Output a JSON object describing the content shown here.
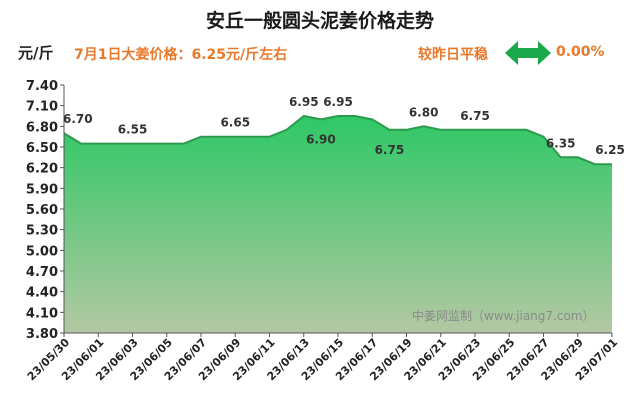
{
  "header": {
    "title": "安丘一般圆头泥姜价格走势",
    "unit": "元/斤",
    "price_note": "7月1日大姜价格：6.25元/斤左右",
    "compare_label": "较昨日平稳",
    "change_pct": "0.00%"
  },
  "watermark": "中姜网监制（www.jiang7.com）",
  "colors": {
    "accent": "#e8782a",
    "area_top": "#2ec866",
    "area_bottom": "#b3c8a3",
    "line": "#2e9a4e",
    "arrow": "#1aa84a"
  },
  "chart_data": {
    "type": "area",
    "title": "安丘一般圆头泥姜价格走势",
    "ylabel": "元/斤",
    "xlabel": "",
    "ylim": [
      3.8,
      7.4
    ],
    "yticks": [
      "7.40",
      "7.10",
      "6.80",
      "6.50",
      "6.20",
      "5.90",
      "5.60",
      "5.30",
      "5.00",
      "4.70",
      "4.40",
      "4.10",
      "3.80"
    ],
    "grid": false,
    "x": [
      "23/05/30",
      "23/05/31",
      "23/06/01",
      "23/06/02",
      "23/06/03",
      "23/06/04",
      "23/06/05",
      "23/06/06",
      "23/06/07",
      "23/06/08",
      "23/06/09",
      "23/06/10",
      "23/06/11",
      "23/06/12",
      "23/06/13",
      "23/06/14",
      "23/06/15",
      "23/06/16",
      "23/06/17",
      "23/06/18",
      "23/06/19",
      "23/06/20",
      "23/06/21",
      "23/06/22",
      "23/06/23",
      "23/06/24",
      "23/06/25",
      "23/06/26",
      "23/06/27",
      "23/06/28",
      "23/06/29",
      "23/06/30",
      "23/07/01"
    ],
    "xticks": [
      "23/05/30",
      "23/06/01",
      "23/06/03",
      "23/06/05",
      "23/06/07",
      "23/06/09",
      "23/06/11",
      "23/06/13",
      "23/06/15",
      "23/06/17",
      "23/06/19",
      "23/06/21",
      "23/06/23",
      "23/06/25",
      "23/06/27",
      "23/06/29",
      "23/07/01"
    ],
    "values": [
      6.7,
      6.55,
      6.55,
      6.55,
      6.55,
      6.55,
      6.55,
      6.55,
      6.65,
      6.65,
      6.65,
      6.65,
      6.65,
      6.75,
      6.95,
      6.9,
      6.95,
      6.95,
      6.9,
      6.75,
      6.75,
      6.8,
      6.75,
      6.75,
      6.75,
      6.75,
      6.75,
      6.75,
      6.65,
      6.35,
      6.35,
      6.25,
      6.25
    ],
    "data_labels": [
      {
        "index": 0,
        "text": "6.70"
      },
      {
        "index": 4,
        "text": "6.55"
      },
      {
        "index": 10,
        "text": "6.65"
      },
      {
        "index": 14,
        "text": "6.95"
      },
      {
        "index": 15,
        "text": "6.90"
      },
      {
        "index": 16,
        "text": "6.95"
      },
      {
        "index": 19,
        "text": "6.75"
      },
      {
        "index": 21,
        "text": "6.80"
      },
      {
        "index": 24,
        "text": "6.75"
      },
      {
        "index": 29,
        "text": "6.35"
      },
      {
        "index": 32,
        "text": "6.25"
      }
    ]
  }
}
